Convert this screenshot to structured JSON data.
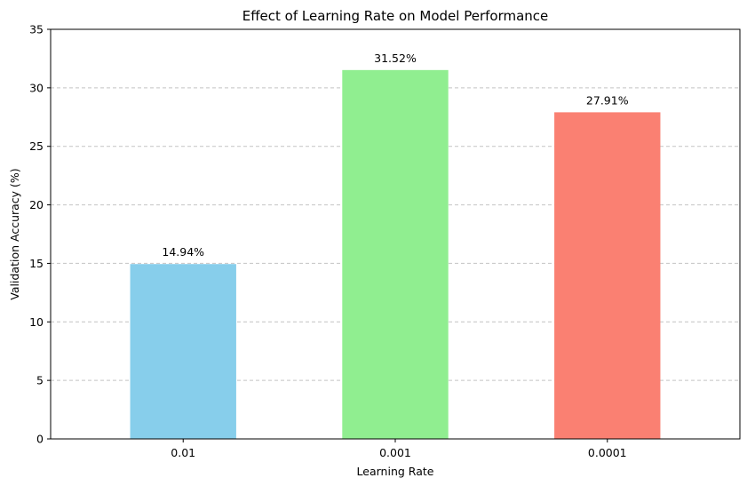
{
  "chart_data": {
    "type": "bar",
    "title": "Effect of Learning Rate on Model Performance",
    "xlabel": "Learning Rate",
    "ylabel": "Validation Accuracy (%)",
    "categories": [
      "0.01",
      "0.001",
      "0.0001"
    ],
    "values": [
      14.94,
      31.52,
      27.91
    ],
    "data_labels": [
      "14.94%",
      "31.52%",
      "27.91%"
    ],
    "colors": [
      "#87ceeb",
      "#90ee90",
      "#fa8072"
    ],
    "ylim": [
      0,
      35
    ],
    "yticks": [
      0,
      5,
      10,
      15,
      20,
      25,
      30,
      35
    ],
    "grid": "y-dashed",
    "legend": "none"
  }
}
